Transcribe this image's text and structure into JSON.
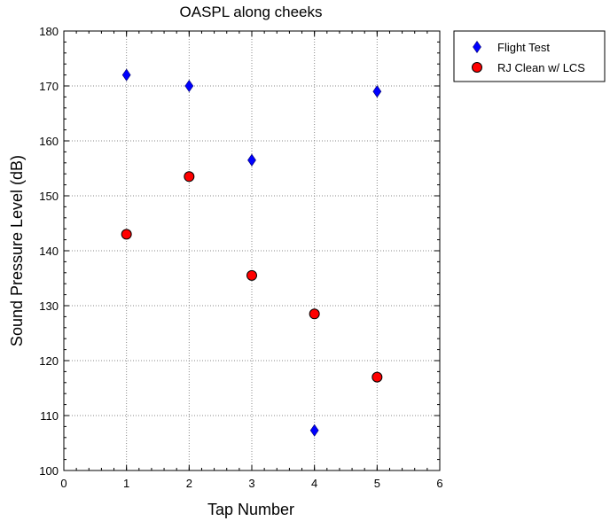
{
  "chart_data": {
    "type": "scatter",
    "title": "OASPL along cheeks",
    "xlabel": "Tap Number",
    "ylabel": "Sound Pressure Level (dB)",
    "xlim": [
      0,
      6
    ],
    "ylim": [
      100,
      180
    ],
    "xticks": [
      0,
      1,
      2,
      3,
      4,
      5,
      6
    ],
    "yticks": [
      100,
      110,
      120,
      130,
      140,
      150,
      160,
      170,
      180
    ],
    "grid": true,
    "legend_position": "outside-top-right",
    "series": [
      {
        "name": "Flight Test",
        "marker": "diamond",
        "color": "#0000ff",
        "x": [
          1,
          2,
          3,
          4,
          5
        ],
        "y": [
          172,
          170,
          156.5,
          107.3,
          169
        ]
      },
      {
        "name": "RJ Clean w/ LCS",
        "marker": "circle",
        "color": "#ff0000",
        "x": [
          1,
          2,
          3,
          4,
          5
        ],
        "y": [
          143,
          153.5,
          135.5,
          128.5,
          117
        ]
      }
    ]
  }
}
